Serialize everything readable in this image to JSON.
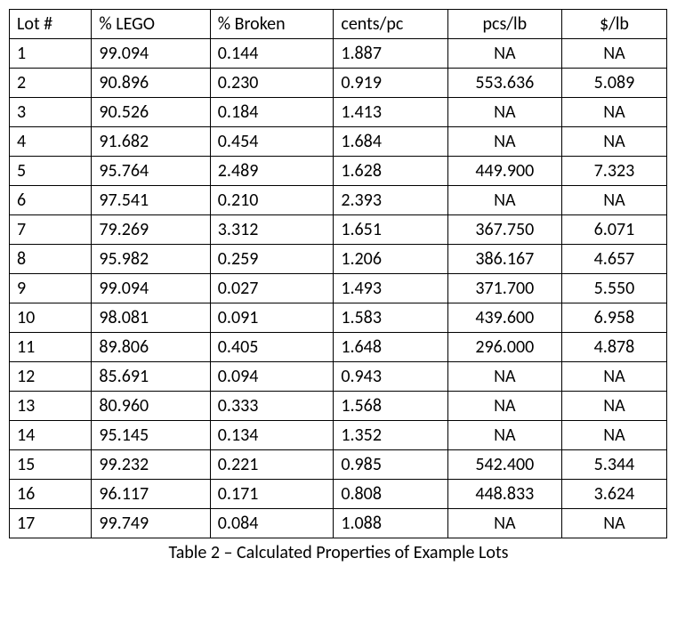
{
  "table": {
    "columns": [
      "Lot #",
      "% LEGO",
      "% Broken",
      "cents/pc",
      "pcs/lb",
      "$/lb"
    ],
    "rows": [
      [
        "1",
        "99.094",
        "0.144",
        "1.887",
        "NA",
        "NA"
      ],
      [
        "2",
        "90.896",
        "0.230",
        "0.919",
        "553.636",
        "5.089"
      ],
      [
        "3",
        "90.526",
        "0.184",
        "1.413",
        "NA",
        "NA"
      ],
      [
        "4",
        "91.682",
        "0.454",
        "1.684",
        "NA",
        "NA"
      ],
      [
        "5",
        "95.764",
        "2.489",
        "1.628",
        "449.900",
        "7.323"
      ],
      [
        "6",
        "97.541",
        "0.210",
        "2.393",
        "NA",
        "NA"
      ],
      [
        "7",
        "79.269",
        "3.312",
        "1.651",
        "367.750",
        "6.071"
      ],
      [
        "8",
        "95.982",
        "0.259",
        "1.206",
        "386.167",
        "4.657"
      ],
      [
        "9",
        "99.094",
        "0.027",
        "1.493",
        "371.700",
        "5.550"
      ],
      [
        "10",
        "98.081",
        "0.091",
        "1.583",
        "439.600",
        "6.958"
      ],
      [
        "11",
        "89.806",
        "0.405",
        "1.648",
        "296.000",
        "4.878"
      ],
      [
        "12",
        "85.691",
        "0.094",
        "0.943",
        "NA",
        "NA"
      ],
      [
        "13",
        "80.960",
        "0.333",
        "1.568",
        "NA",
        "NA"
      ],
      [
        "14",
        "95.145",
        "0.134",
        "1.352",
        "NA",
        "NA"
      ],
      [
        "15",
        "99.232",
        "0.221",
        "0.985",
        "542.400",
        "5.344"
      ],
      [
        "16",
        "96.117",
        "0.171",
        "0.808",
        "448.833",
        "3.624"
      ],
      [
        "17",
        "99.749",
        "0.084",
        "1.088",
        "NA",
        "NA"
      ]
    ],
    "caption": "Table 2 – Calculated Properties of Example Lots",
    "background_color": "#ffffff",
    "border_color": "#000000",
    "text_color": "#000000",
    "font_size": 20,
    "col_classes": [
      "col-lot",
      "col-lego",
      "col-broken",
      "col-cents",
      "col-pcs",
      "col-dollar"
    ]
  }
}
